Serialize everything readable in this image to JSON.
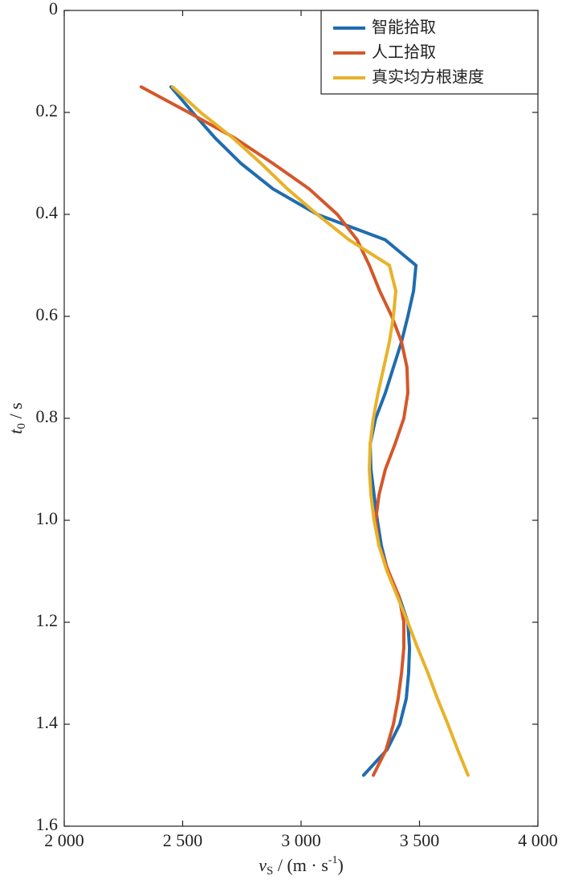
{
  "chart_data": {
    "type": "line",
    "x_label": [
      "v",
      "S",
      " / (m · s",
      "-1",
      ")"
    ],
    "y_label": [
      "t",
      "0",
      " / s"
    ],
    "y": [
      0.15,
      0.2,
      0.25,
      0.3,
      0.35,
      0.4,
      0.45,
      0.5,
      0.55,
      0.6,
      0.65,
      0.7,
      0.75,
      0.8,
      0.85,
      0.9,
      0.95,
      1.0,
      1.05,
      1.1,
      1.15,
      1.2,
      1.25,
      1.3,
      1.35,
      1.4,
      1.45,
      1.5
    ],
    "series": [
      {
        "name": "智能拾取",
        "color": "#1f6cb0",
        "values": [
          2451,
          2542,
          2637,
          2746,
          2881,
          3068,
          3356,
          3485,
          3475,
          3451,
          3424,
          3390,
          3356,
          3315,
          3292,
          3295,
          3308,
          3322,
          3339,
          3366,
          3414,
          3451,
          3458,
          3454,
          3444,
          3417,
          3363,
          3264
        ]
      },
      {
        "name": "人工拾取",
        "color": "#d4572a",
        "values": [
          2325,
          2525,
          2719,
          2881,
          3034,
          3153,
          3237,
          3288,
          3332,
          3383,
          3424,
          3447,
          3451,
          3434,
          3397,
          3356,
          3329,
          3315,
          3329,
          3369,
          3414,
          3434,
          3434,
          3424,
          3410,
          3390,
          3359,
          3305
        ]
      },
      {
        "name": "真实均方根速度",
        "color": "#e8b22a",
        "values": [
          2458,
          2576,
          2712,
          2831,
          2942,
          3068,
          3203,
          3373,
          3400,
          3390,
          3373,
          3349,
          3325,
          3305,
          3292,
          3288,
          3295,
          3308,
          3329,
          3363,
          3407,
          3451,
          3492,
          3536,
          3576,
          3620,
          3661,
          3705
        ]
      }
    ],
    "xlim": [
      2000,
      4000
    ],
    "xticks": [
      {
        "value": 2000,
        "label": "2 000"
      },
      {
        "value": 2500,
        "label": "2 500"
      },
      {
        "value": 3000,
        "label": "3 000"
      },
      {
        "value": 3500,
        "label": "3 500"
      },
      {
        "value": 4000,
        "label": "4 000"
      }
    ],
    "ylim": [
      0,
      1.6
    ],
    "y_inverted": true,
    "yticks": [
      0,
      0.2,
      0.4,
      0.6,
      0.8,
      {
        "value": 1,
        "label": "1.0"
      },
      1.2,
      1.4,
      1.6
    ],
    "legend": "top-right",
    "grid": false
  }
}
